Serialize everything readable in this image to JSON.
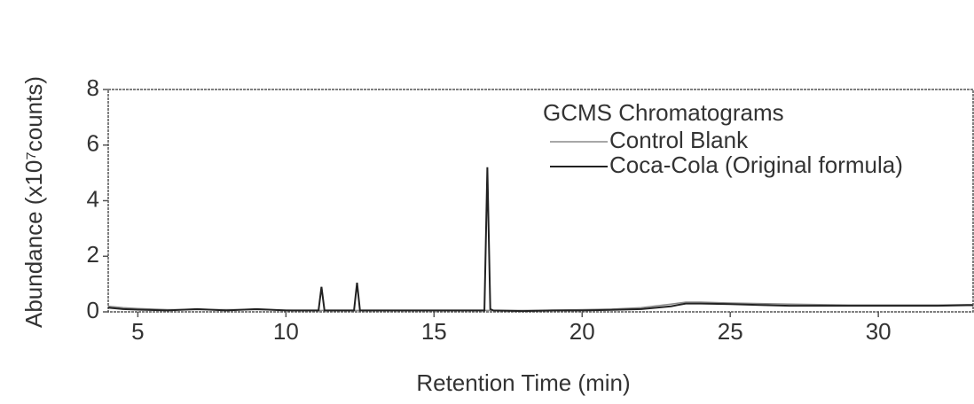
{
  "chart_data": {
    "type": "line",
    "xlabel": "Retention Time (min)",
    "ylabel": "Abundance (x10⁷counts)",
    "legend_title": "GCMS Chromatograms",
    "legend": "upper right",
    "x": [
      4.0,
      4.5,
      5,
      6,
      7,
      8,
      9,
      10,
      10.5,
      11.1,
      11.2,
      11.3,
      12.3,
      12.4,
      12.5,
      16.7,
      16.8,
      16.9,
      17,
      18,
      19,
      20,
      21,
      22,
      23,
      23.5,
      24,
      25,
      26,
      27,
      28,
      29,
      30,
      31,
      32,
      33,
      33.2
    ],
    "series": [
      {
        "name": "Control Blank",
        "color": "#8a8a8a",
        "values": [
          0.2,
          0.15,
          0.12,
          0.08,
          0.08,
          0.08,
          0.08,
          0.06,
          0.05,
          0.05,
          0.05,
          0.05,
          0.05,
          0.05,
          0.05,
          0.05,
          0.05,
          0.05,
          0.05,
          0.05,
          0.06,
          0.08,
          0.1,
          0.15,
          0.28,
          0.35,
          0.35,
          0.32,
          0.3,
          0.28,
          0.26,
          0.25,
          0.25,
          0.25,
          0.25,
          0.26,
          0.26
        ]
      },
      {
        "name": "Coca-Cola (Original formula)",
        "color": "#222222",
        "values": [
          0.15,
          0.1,
          0.08,
          0.05,
          0.1,
          0.05,
          0.1,
          0.05,
          0.05,
          0.05,
          0.9,
          0.05,
          0.05,
          1.05,
          0.05,
          0.05,
          5.2,
          0.1,
          0.05,
          0.03,
          0.05,
          0.05,
          0.07,
          0.1,
          0.2,
          0.3,
          0.3,
          0.28,
          0.25,
          0.22,
          0.22,
          0.22,
          0.22,
          0.22,
          0.22,
          0.24,
          0.24
        ]
      }
    ],
    "xlim": [
      4,
      33.2
    ],
    "xticks": [
      5,
      10,
      15,
      20,
      25,
      30
    ],
    "ylim": [
      0,
      8
    ],
    "yticks": [
      0,
      2,
      4,
      6,
      8
    ]
  }
}
